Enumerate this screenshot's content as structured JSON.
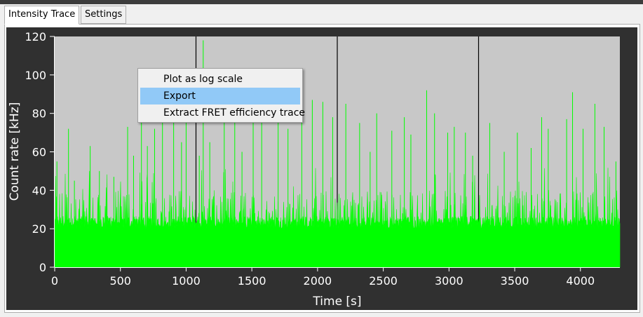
{
  "tabs": [
    {
      "label": "Intensity Trace",
      "active": true
    },
    {
      "label": "Settings",
      "active": false
    }
  ],
  "chart_data": {
    "type": "bar",
    "xlabel": "Time [s]",
    "ylabel": "Count rate [kHz]",
    "xlim": [
      0,
      4300
    ],
    "ylim": [
      0,
      120
    ],
    "xticks": [
      0,
      500,
      1000,
      1500,
      2000,
      2500,
      3000,
      3500,
      4000
    ],
    "yticks": [
      0,
      20,
      40,
      60,
      80,
      100,
      120
    ],
    "series_color": "#00ff00",
    "plot_background": "#c8c8c8",
    "vertical_markers": [
      1075,
      2150,
      3225
    ],
    "baseline_level": 20,
    "peaks": [
      {
        "x": 17,
        "y": 55
      },
      {
        "x": 105,
        "y": 72
      },
      {
        "x": 150,
        "y": 45
      },
      {
        "x": 270,
        "y": 63
      },
      {
        "x": 340,
        "y": 50
      },
      {
        "x": 450,
        "y": 47
      },
      {
        "x": 555,
        "y": 73
      },
      {
        "x": 600,
        "y": 58
      },
      {
        "x": 660,
        "y": 77
      },
      {
        "x": 705,
        "y": 63
      },
      {
        "x": 760,
        "y": 72
      },
      {
        "x": 820,
        "y": 80
      },
      {
        "x": 905,
        "y": 92
      },
      {
        "x": 965,
        "y": 65
      },
      {
        "x": 1000,
        "y": 79
      },
      {
        "x": 1100,
        "y": 58
      },
      {
        "x": 1130,
        "y": 118
      },
      {
        "x": 1180,
        "y": 65
      },
      {
        "x": 1290,
        "y": 83
      },
      {
        "x": 1370,
        "y": 77
      },
      {
        "x": 1425,
        "y": 60
      },
      {
        "x": 1510,
        "y": 89
      },
      {
        "x": 1575,
        "y": 78
      },
      {
        "x": 1700,
        "y": 83
      },
      {
        "x": 1775,
        "y": 72
      },
      {
        "x": 1880,
        "y": 85
      },
      {
        "x": 1960,
        "y": 87
      },
      {
        "x": 2040,
        "y": 86
      },
      {
        "x": 2115,
        "y": 78
      },
      {
        "x": 2215,
        "y": 85
      },
      {
        "x": 2320,
        "y": 75
      },
      {
        "x": 2400,
        "y": 60
      },
      {
        "x": 2450,
        "y": 80
      },
      {
        "x": 2565,
        "y": 71
      },
      {
        "x": 2660,
        "y": 78
      },
      {
        "x": 2710,
        "y": 69
      },
      {
        "x": 2830,
        "y": 92
      },
      {
        "x": 2890,
        "y": 80
      },
      {
        "x": 2990,
        "y": 70
      },
      {
        "x": 3040,
        "y": 73
      },
      {
        "x": 3125,
        "y": 70
      },
      {
        "x": 3180,
        "y": 58
      },
      {
        "x": 3310,
        "y": 75
      },
      {
        "x": 3420,
        "y": 60
      },
      {
        "x": 3520,
        "y": 70
      },
      {
        "x": 3625,
        "y": 62
      },
      {
        "x": 3705,
        "y": 78
      },
      {
        "x": 3755,
        "y": 72
      },
      {
        "x": 3895,
        "y": 77
      },
      {
        "x": 3940,
        "y": 91
      },
      {
        "x": 4020,
        "y": 72
      },
      {
        "x": 4110,
        "y": 85
      },
      {
        "x": 4180,
        "y": 73
      },
      {
        "x": 4270,
        "y": 55
      }
    ]
  },
  "context_menu": {
    "items": [
      {
        "label": "Plot as log scale",
        "highlighted": false
      },
      {
        "label": "Export",
        "highlighted": true
      },
      {
        "label": "Extract FRET efficiency trace",
        "highlighted": false
      }
    ]
  },
  "colors": {
    "frame": "#303030",
    "highlight": "#91c9f7"
  }
}
